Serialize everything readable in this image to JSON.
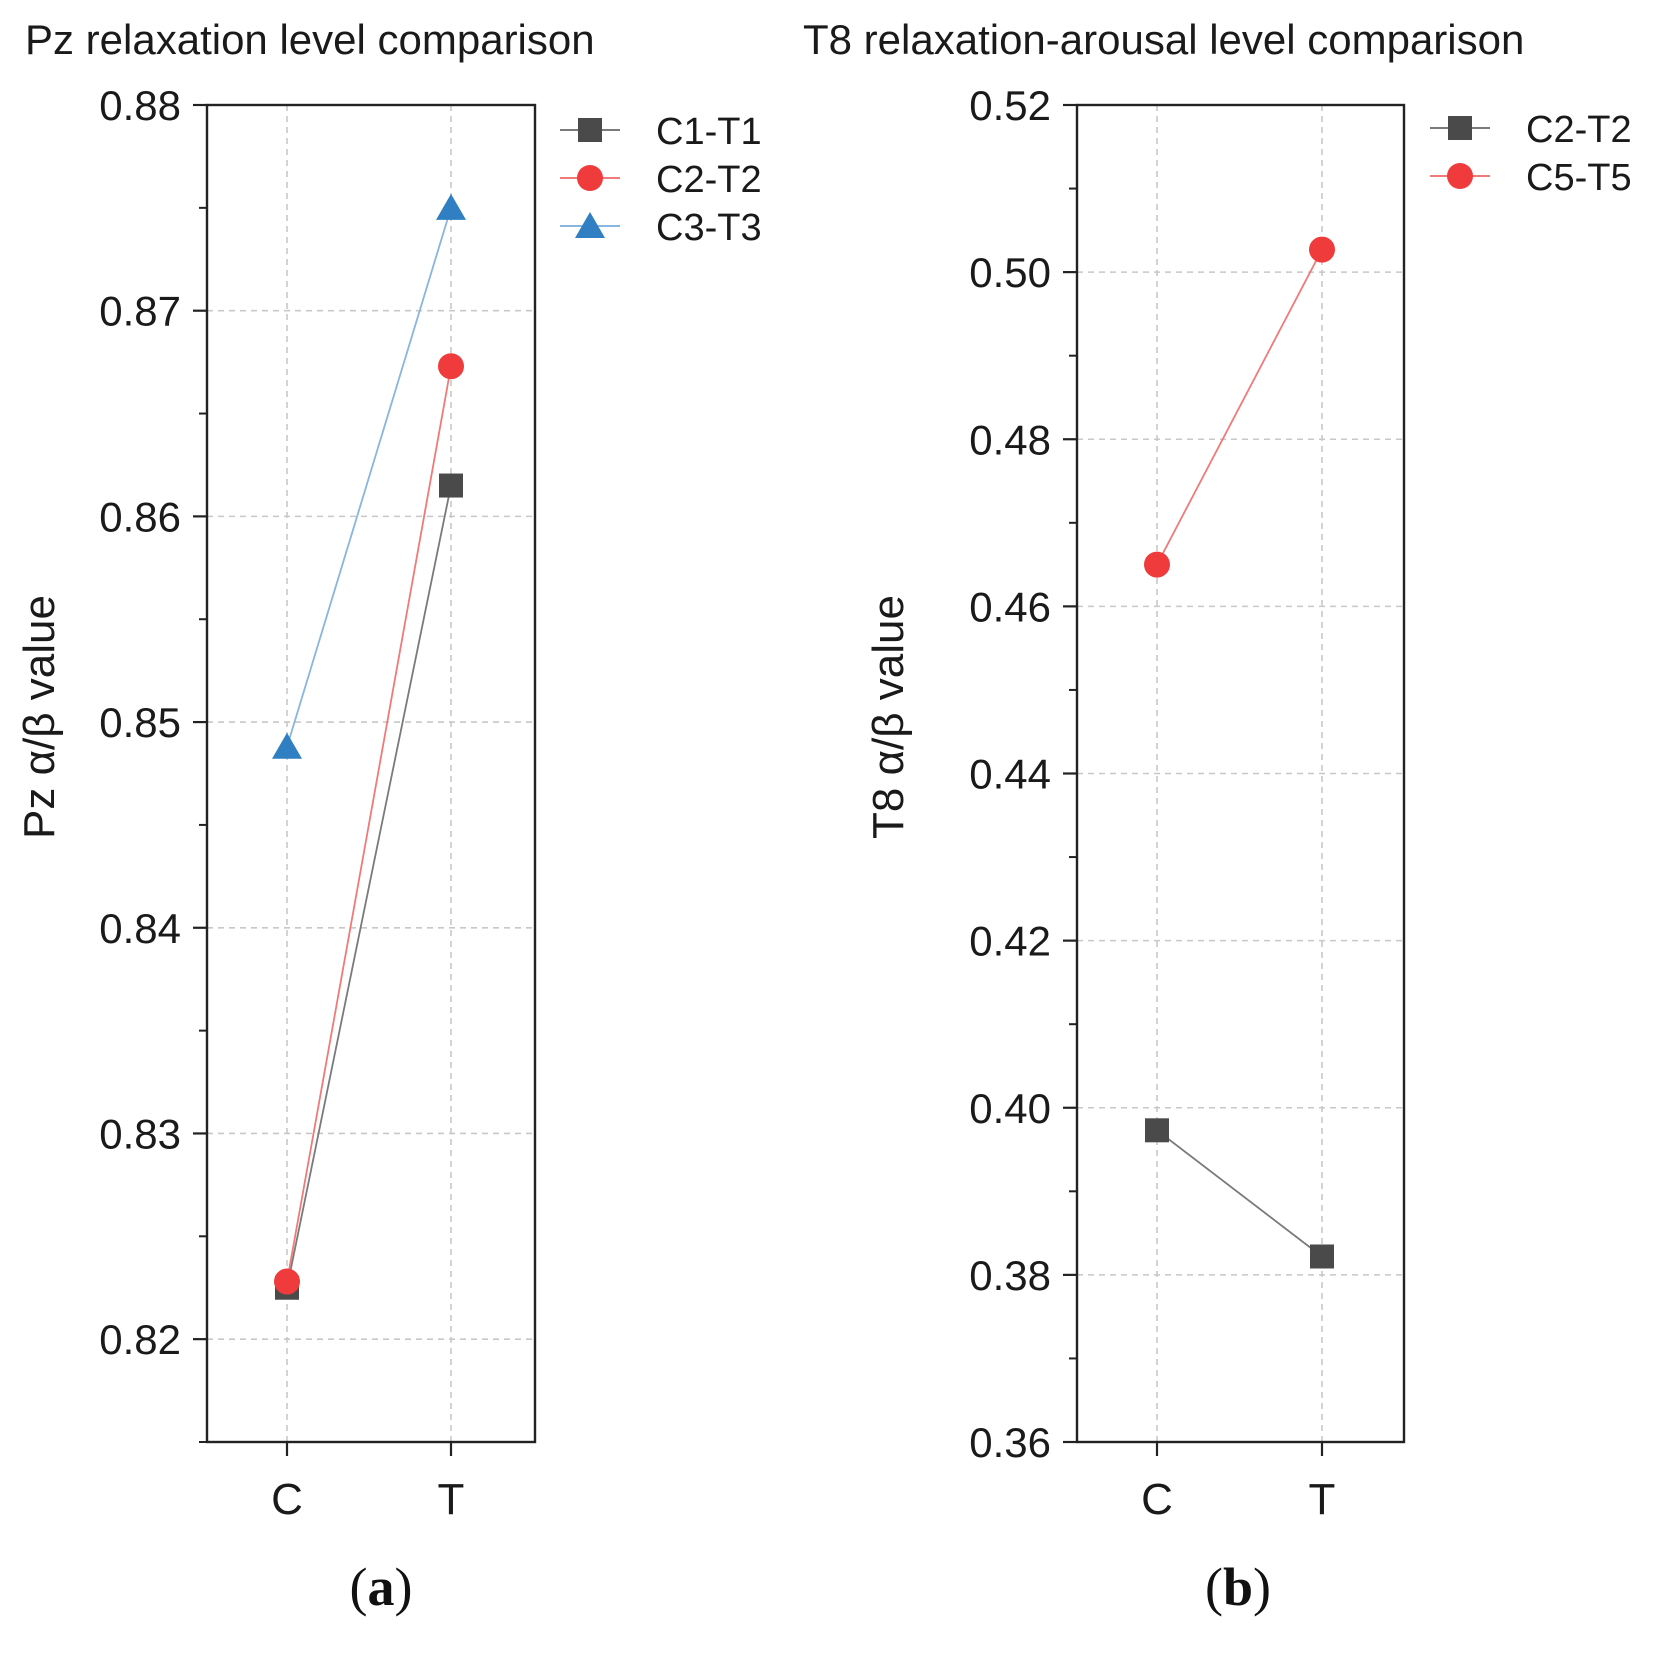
{
  "chart_data": [
    {
      "type": "line",
      "panel_label": "a",
      "title": "Pz relaxation level comparison",
      "xlabel": "",
      "ylabel": "Pz α/β value",
      "categories": [
        "C",
        "T"
      ],
      "ylim": [
        0.815,
        0.88
      ],
      "yticks": [
        "0.82",
        "0.83",
        "0.84",
        "0.85",
        "0.86",
        "0.87",
        "0.88"
      ],
      "minor_step": 0.005,
      "grid": true,
      "legend_position": "top-right outside",
      "series": [
        {
          "name": "C1-T1",
          "values": [
            0.8225,
            0.8615
          ],
          "color": "#4a4a4a",
          "line_color": "#7a7a7a",
          "marker": "square"
        },
        {
          "name": "C2-T2",
          "values": [
            0.8228,
            0.8673
          ],
          "color": "#ef3b3b",
          "line_color": "#f07a7a",
          "marker": "circle"
        },
        {
          "name": "C3-T3",
          "values": [
            0.8488,
            0.875
          ],
          "color": "#2f7fc2",
          "line_color": "#88b6de",
          "marker": "triangle"
        }
      ]
    },
    {
      "type": "line",
      "panel_label": "b",
      "title": "T8 relaxation-arousal level comparison",
      "xlabel": "",
      "ylabel": "T8 α/β value",
      "categories": [
        "C",
        "T"
      ],
      "ylim": [
        0.36,
        0.52
      ],
      "yticks": [
        "0.36",
        "0.38",
        "0.40",
        "0.42",
        "0.44",
        "0.46",
        "0.48",
        "0.50",
        "0.52"
      ],
      "minor_step": 0.01,
      "grid": true,
      "legend_position": "top-right outside",
      "series": [
        {
          "name": "C2-T2",
          "values": [
            0.3973,
            0.3822
          ],
          "color": "#4a4a4a",
          "line_color": "#7a7a7a",
          "marker": "square"
        },
        {
          "name": "C5-T5",
          "values": [
            0.465,
            0.5027
          ],
          "color": "#ef3b3b",
          "line_color": "#f07a7a",
          "marker": "circle"
        }
      ]
    }
  ]
}
